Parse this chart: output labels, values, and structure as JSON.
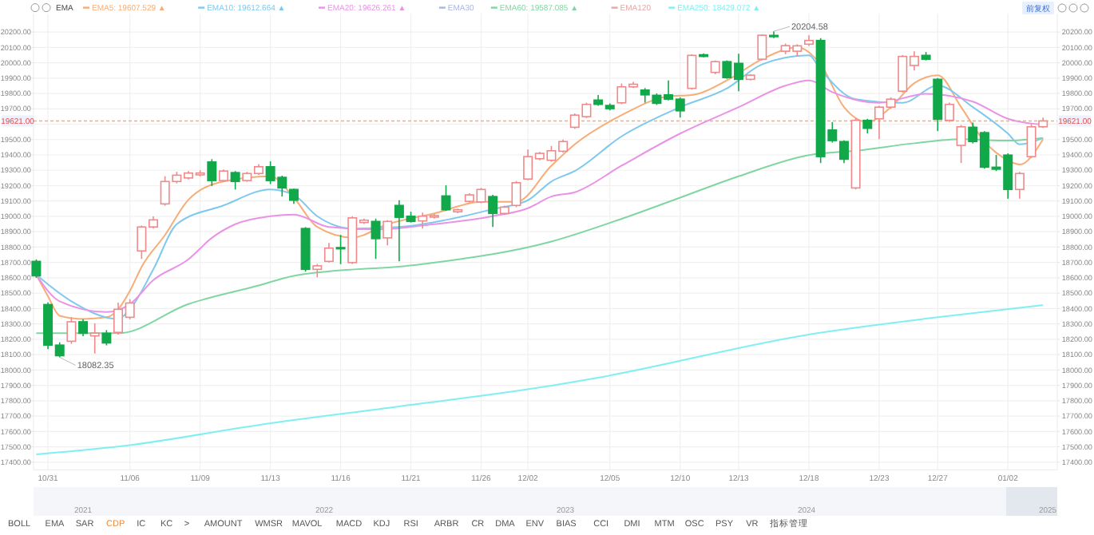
{
  "chart_data": {
    "type": "candlestick",
    "categories": [
      null,
      "10/31",
      null,
      null,
      null,
      null,
      null,
      null,
      "11/06",
      null,
      null,
      null,
      null,
      null,
      "11/09",
      null,
      null,
      null,
      null,
      null,
      "11/13",
      null,
      null,
      null,
      null,
      null,
      "11/16",
      null,
      null,
      null,
      null,
      null,
      "11/21",
      null,
      null,
      null,
      null,
      null,
      "11/26",
      null,
      null,
      null,
      "12/02",
      null,
      null,
      null,
      null,
      null,
      null,
      "12/05",
      null,
      null,
      null,
      null,
      null,
      "12/10",
      null,
      null,
      null,
      null,
      "12/13",
      null,
      null,
      null,
      null,
      null,
      "12/18",
      null,
      null,
      null,
      null,
      null,
      "12/23",
      null,
      null,
      null,
      null,
      "12/27",
      null,
      null,
      null,
      null,
      null,
      "01/02",
      null,
      null,
      null
    ],
    "ohlc": [
      [
        18707,
        18720,
        18600,
        18613
      ],
      [
        18426,
        18440,
        18135,
        18162
      ],
      [
        18162,
        18180,
        18082.35,
        18093
      ],
      [
        18187,
        18343,
        18170,
        18314
      ],
      [
        18314,
        18330,
        18220,
        18239
      ],
      [
        18222,
        18304,
        18107,
        18240
      ],
      [
        18239,
        18260,
        18160,
        18176
      ],
      [
        18245,
        18439,
        18230,
        18395
      ],
      [
        18343,
        18460,
        18330,
        18436
      ],
      [
        18775,
        18940,
        18723,
        18931
      ],
      [
        18931,
        19000,
        18920,
        18977
      ],
      [
        19081,
        19261,
        19070,
        19227
      ],
      [
        19227,
        19290,
        19215,
        19268
      ],
      [
        19250,
        19295,
        19240,
        19282
      ],
      [
        19270,
        19300,
        19260,
        19282
      ],
      [
        19354,
        19372,
        19198,
        19233
      ],
      [
        19233,
        19305,
        19225,
        19295
      ],
      [
        19285,
        19295,
        19175,
        19227
      ],
      [
        19233,
        19290,
        19225,
        19279
      ],
      [
        19279,
        19340,
        19270,
        19323
      ],
      [
        19323,
        19358,
        19210,
        19233
      ],
      [
        19254,
        19265,
        19129,
        19185
      ],
      [
        19175,
        19180,
        19081,
        19105
      ],
      [
        18921,
        18930,
        18640,
        18655
      ],
      [
        18655,
        18690,
        18603,
        18678
      ],
      [
        18707,
        18827,
        18700,
        18793
      ],
      [
        18797,
        18879,
        18689,
        18790
      ],
      [
        18699,
        19000,
        18690,
        18990
      ],
      [
        18960,
        18985,
        18950,
        18975
      ],
      [
        18967,
        18985,
        18723,
        18855
      ],
      [
        18860,
        18975,
        18811,
        18967
      ],
      [
        19071,
        19105,
        18707,
        18994
      ],
      [
        19001,
        19030,
        18960,
        18967
      ],
      [
        18970,
        19025,
        18920,
        19001
      ],
      [
        18995,
        19015,
        18985,
        19005
      ],
      [
        19133,
        19202,
        19035,
        19043
      ],
      [
        19030,
        19050,
        19020,
        19043
      ],
      [
        19098,
        19150,
        19090,
        19140
      ],
      [
        19094,
        19185,
        19085,
        19175
      ],
      [
        19129,
        19140,
        18931,
        19019
      ],
      [
        19019,
        19070,
        19010,
        19060
      ],
      [
        19071,
        19230,
        19060,
        19219
      ],
      [
        19243,
        19435,
        19235,
        19389
      ],
      [
        19375,
        19420,
        19365,
        19410
      ],
      [
        19365,
        19458,
        19355,
        19427
      ],
      [
        19424,
        19500,
        19415,
        19487
      ],
      [
        19580,
        19670,
        19570,
        19659
      ],
      [
        19649,
        19740,
        19640,
        19729
      ],
      [
        19757,
        19790,
        19720,
        19729
      ],
      [
        19722,
        19735,
        19690,
        19701
      ],
      [
        19739,
        19865,
        19730,
        19843
      ],
      [
        19843,
        19875,
        19835,
        19860
      ],
      [
        19822,
        19835,
        19740,
        19791
      ],
      [
        19788,
        19800,
        19725,
        19736
      ],
      [
        19791,
        19885,
        19755,
        19763
      ],
      [
        19763,
        19775,
        19643,
        19687
      ],
      [
        19833,
        20055,
        19825,
        20048
      ],
      [
        20052,
        20060,
        20035,
        20041
      ],
      [
        19937,
        20015,
        19925,
        20007
      ],
      [
        20007,
        20015,
        19895,
        19903
      ],
      [
        19996,
        20059,
        19815,
        19892
      ],
      [
        19892,
        19925,
        19885,
        19919
      ],
      [
        20023,
        20185,
        20015,
        20179
      ],
      [
        20178,
        20204.58,
        20160,
        20170
      ],
      [
        20075,
        20125,
        20055,
        20111
      ],
      [
        20075,
        20120,
        20041,
        20110
      ],
      [
        20121,
        20179,
        20110,
        20145
      ],
      [
        20145,
        20160,
        19347,
        19389
      ],
      [
        19562,
        19614,
        19480,
        19493
      ],
      [
        19487,
        19495,
        19347,
        19372
      ],
      [
        19185,
        19640,
        19175,
        19625
      ],
      [
        19625,
        19635,
        19540,
        19573
      ],
      [
        19635,
        19720,
        19503,
        19711
      ],
      [
        19711,
        19775,
        19700,
        19763
      ],
      [
        19815,
        20050,
        19805,
        20041
      ],
      [
        19982,
        20075,
        19950,
        20041
      ],
      [
        20048,
        20070,
        20015,
        20023
      ],
      [
        19892,
        19900,
        19555,
        19632
      ],
      [
        19625,
        19740,
        19615,
        19729
      ],
      [
        19462,
        19595,
        19347,
        19583
      ],
      [
        19580,
        19610,
        19475,
        19487
      ],
      [
        19545,
        19555,
        19310,
        19320
      ],
      [
        19320,
        19400,
        19295,
        19307
      ],
      [
        19399,
        19410,
        19115,
        19175
      ],
      [
        19175,
        19290,
        19115,
        19279
      ],
      [
        19389,
        19601,
        19380,
        19583
      ],
      [
        19583,
        19643,
        19575,
        19621
      ]
    ],
    "series": [
      {
        "type": "line",
        "name": "EMA5: 19607.529 ▲",
        "color": "#f7ad78",
        "values": [
          18620,
          18480,
          18353,
          null,
          18332,
          null,
          18343,
          18395,
          18515,
          18671,
          null,
          18879,
          null,
          19108,
          null,
          null,
          19227,
          null,
          null,
          null,
          19261,
          null,
          19122,
          null,
          18931,
          null,
          null,
          18862,
          null,
          null,
          18949,
          null,
          null,
          null,
          19019,
          null,
          null,
          null,
          19094,
          null,
          null,
          19094,
          null,
          null,
          19330,
          null,
          19469,
          null,
          null,
          null,
          19659,
          null,
          null,
          null,
          19781,
          null,
          19790,
          null,
          null,
          19885,
          null,
          null,
          20023,
          null,
          null,
          20100,
          null,
          19989,
          null,
          19711,
          null,
          19614,
          null,
          19711,
          null,
          19867,
          null,
          19919,
          null,
          19711,
          null,
          19487,
          null,
          19365,
          19337,
          null,
          19503
        ]
      },
      {
        "type": "line",
        "name": "EMA10: 19612.664 ▲",
        "color": "#7fc8ee",
        "values": [
          18620,
          null,
          null,
          18447,
          null,
          null,
          null,
          18332,
          18395,
          null,
          18655,
          null,
          18949,
          null,
          null,
          null,
          19071,
          null,
          null,
          null,
          19175,
          null,
          19139,
          null,
          19001,
          null,
          null,
          18921,
          null,
          null,
          null,
          18931,
          null,
          null,
          null,
          18977,
          null,
          null,
          null,
          19047,
          null,
          null,
          19105,
          null,
          19227,
          null,
          19295,
          null,
          null,
          null,
          19521,
          null,
          null,
          null,
          null,
          19711,
          null,
          null,
          null,
          19833,
          null,
          null,
          19989,
          null,
          null,
          null,
          20048,
          19955,
          null,
          null,
          19763,
          null,
          null,
          null,
          19739,
          null,
          null,
          19851,
          null,
          null,
          19711,
          null,
          null,
          19539,
          19469,
          null,
          19510
        ]
      },
      {
        "type": "line",
        "name": "EMA20: 19626.261 ▲",
        "color": "#e993e6",
        "values": [
          18620,
          null,
          18447,
          null,
          null,
          null,
          18377,
          null,
          18429,
          null,
          18585,
          null,
          null,
          18720,
          null,
          18860,
          null,
          18949,
          null,
          null,
          19001,
          null,
          19012,
          null,
          null,
          18931,
          null,
          null,
          null,
          18915,
          null,
          null,
          null,
          null,
          18949,
          null,
          null,
          null,
          null,
          19001,
          null,
          null,
          19053,
          null,
          19129,
          null,
          19157,
          null,
          null,
          null,
          19330,
          null,
          null,
          null,
          null,
          19539,
          null,
          null,
          null,
          null,
          19711,
          null,
          null,
          null,
          19851,
          null,
          19885,
          null,
          19809,
          null,
          null,
          null,
          19739,
          null,
          null,
          null,
          19798,
          null,
          null,
          null,
          19747,
          null,
          null,
          19635,
          null,
          null,
          19597
        ]
      },
      {
        "type": "line",
        "name": "EMA30",
        "color": "#a9b6e0",
        "values": [
          null,
          null,
          null,
          null,
          null,
          null,
          null,
          null,
          null,
          null,
          null,
          null,
          null,
          null,
          null,
          null,
          null,
          null,
          null,
          null,
          null,
          null,
          null,
          null,
          null,
          null,
          null,
          null,
          null,
          null,
          null,
          null,
          null,
          null,
          null,
          null,
          null,
          null,
          null,
          null,
          null,
          null,
          null,
          null,
          null,
          null,
          null,
          null,
          null,
          null,
          null,
          null,
          null,
          null,
          null,
          null,
          null,
          null,
          null,
          null,
          null,
          null,
          null,
          null,
          null,
          null,
          null,
          null,
          null,
          null,
          null,
          null,
          null,
          null,
          null,
          null,
          null,
          null,
          null,
          null,
          null,
          null,
          null,
          null,
          null,
          null,
          null
        ]
      },
      {
        "type": "line",
        "name": "EMA60: 19587.085 ▲",
        "color": "#80d6a2",
        "values": [
          18239,
          null,
          null,
          null,
          null,
          null,
          null,
          18239,
          null,
          null,
          null,
          null,
          null,
          18429,
          null,
          null,
          null,
          null,
          null,
          18550,
          null,
          null,
          18613,
          null,
          null,
          null,
          null,
          null,
          null,
          null,
          null,
          null,
          null,
          18689,
          null,
          null,
          null,
          null,
          null,
          null,
          null,
          null,
          null,
          null,
          18836,
          null,
          null,
          null,
          null,
          null,
          18984,
          null,
          null,
          null,
          null,
          19122,
          null,
          null,
          null,
          null,
          19261,
          null,
          null,
          null,
          null,
          null,
          19399,
          null,
          null,
          null,
          19427,
          null,
          null,
          null,
          null,
          19476,
          null,
          null,
          null,
          19503,
          null,
          null,
          null,
          19493,
          null,
          null,
          19510
        ]
      },
      {
        "type": "line",
        "name": "EMA120",
        "color": "#e0a8a8",
        "values": [
          null,
          null,
          null,
          null,
          null,
          null,
          null,
          null,
          null,
          null,
          null,
          null,
          null,
          null,
          null,
          null,
          null,
          null,
          null,
          null,
          null,
          null,
          null,
          null,
          null,
          null,
          null,
          null,
          null,
          null,
          null,
          null,
          null,
          null,
          null,
          null,
          null,
          null,
          null,
          null,
          null,
          null,
          null,
          null,
          null,
          null,
          null,
          null,
          null,
          null,
          null,
          null,
          null,
          null,
          null,
          null,
          null,
          null,
          null,
          null,
          null,
          null,
          null,
          null,
          null,
          null,
          null,
          null,
          null,
          null,
          null,
          null,
          null,
          null,
          null,
          null,
          null,
          null,
          null,
          null,
          null,
          null,
          null,
          null,
          null,
          null,
          null
        ]
      },
      {
        "type": "line",
        "name": "EMA250: 18429.072 ▲",
        "color": "#7ff0f2",
        "values": [
          17451,
          null,
          null,
          null,
          null,
          null,
          null,
          null,
          17511,
          null,
          null,
          null,
          null,
          null,
          null,
          null,
          null,
          null,
          null,
          17642,
          null,
          null,
          null,
          null,
          null,
          null,
          null,
          null,
          null,
          null,
          null,
          17763,
          null,
          null,
          null,
          null,
          null,
          null,
          null,
          null,
          null,
          null,
          null,
          null,
          17898,
          null,
          null,
          null,
          17950,
          null,
          null,
          null,
          null,
          null,
          null,
          null,
          null,
          null,
          null,
          null,
          null,
          null,
          null,
          null,
          null,
          null,
          18231,
          null,
          null,
          null,
          null,
          null,
          null,
          null,
          null,
          null,
          null,
          18343,
          null,
          null,
          null,
          null,
          null,
          null,
          null,
          null,
          18422
        ]
      }
    ],
    "ylim": [
      17350,
      20320
    ],
    "yticks": [
      {
        "value": 17400,
        "label": "17400.00"
      },
      {
        "value": 17500,
        "label": "17500.00"
      },
      {
        "value": 17600,
        "label": "17600.00"
      },
      {
        "value": 17700,
        "label": "17700.00"
      },
      {
        "value": 17800,
        "label": "17800.00"
      },
      {
        "value": 17900,
        "label": "17900.00"
      },
      {
        "value": 18000,
        "label": "18000.00"
      },
      {
        "value": 18100,
        "label": "18100.00"
      },
      {
        "value": 18200,
        "label": "18200.00"
      },
      {
        "value": 18300,
        "label": "18300.00"
      },
      {
        "value": 18400,
        "label": "18400.00"
      },
      {
        "value": 18500,
        "label": "18500.00"
      },
      {
        "value": 18600,
        "label": "18600.00"
      },
      {
        "value": 18700,
        "label": "18700.00"
      },
      {
        "value": 18800,
        "label": "18800.00"
      },
      {
        "value": 18900,
        "label": "18900.00"
      },
      {
        "value": 19000,
        "label": "19000.00"
      },
      {
        "value": 19100,
        "label": "19100.00"
      },
      {
        "value": 19200,
        "label": "19200.00"
      },
      {
        "value": 19300,
        "label": "19300.00"
      },
      {
        "value": 19400,
        "label": "19400.00"
      },
      {
        "value": 19500,
        "label": "19500.00"
      },
      {
        "value": 19600,
        "label": null
      },
      {
        "value": 19700,
        "label": "19700.00"
      },
      {
        "value": 19800,
        "label": "19800.00"
      },
      {
        "value": 19900,
        "label": "19900.00"
      },
      {
        "value": 20000,
        "label": "20000.00"
      },
      {
        "value": 20100,
        "label": "20100.00"
      },
      {
        "value": 20200,
        "label": "20200.00"
      }
    ],
    "y2lim": [
      17350,
      20320
    ],
    "y2ticks": [
      {
        "value": 17400,
        "label": "17400.00"
      },
      {
        "value": 17500,
        "label": "17500.00"
      },
      {
        "value": 17600,
        "label": "17600.00"
      },
      {
        "value": 17700,
        "label": "17700.00"
      },
      {
        "value": 17800,
        "label": "17800.00"
      },
      {
        "value": 17900,
        "label": "17900.00"
      },
      {
        "value": 18000,
        "label": "18000.00"
      },
      {
        "value": 18100,
        "label": "18100.00"
      },
      {
        "value": 18200,
        "label": "18200.00"
      },
      {
        "value": 18300,
        "label": "18300.00"
      },
      {
        "value": 18400,
        "label": "18400.00"
      },
      {
        "value": 18500,
        "label": "18500.00"
      },
      {
        "value": 18600,
        "label": "18600.00"
      },
      {
        "value": 18700,
        "label": "18700.00"
      },
      {
        "value": 18800,
        "label": "18800.00"
      },
      {
        "value": 18900,
        "label": "18900.00"
      },
      {
        "value": 19000,
        "label": "19000.00"
      },
      {
        "value": 19100,
        "label": "19100.00"
      },
      {
        "value": 19200,
        "label": "19200.00"
      },
      {
        "value": 19300,
        "label": "19300.00"
      },
      {
        "value": 19400,
        "label": "19400.00"
      },
      {
        "value": 19500,
        "label": "19500.00"
      },
      {
        "value": 19600,
        "label": null
      },
      {
        "value": 19700,
        "label": "19700.00"
      },
      {
        "value": 19800,
        "label": "19800.00"
      },
      {
        "value": 19900,
        "label": "19900.00"
      },
      {
        "value": 20000,
        "label": "20000.00"
      },
      {
        "value": 20100,
        "label": "20100.00"
      },
      {
        "value": 20200,
        "label": "20200.00"
      }
    ],
    "ref_lines": [
      {
        "axis": "y",
        "value": 19621,
        "label": "19621.00",
        "color": "#f7ad78",
        "line_style": "dashed"
      }
    ],
    "annotations": [
      {
        "text": "20204.58",
        "y": 20204.58
      },
      {
        "text": "18082.35",
        "y": 18082.35
      },
      "EMA",
      "前复权",
      "2021",
      "2022",
      "2023",
      "2024",
      "2025",
      "BOLL",
      "EMA",
      "SAR",
      "CDP",
      "IC",
      "KC",
      ">",
      "AMOUNT",
      "WMSR",
      "MAVOL",
      "MACD",
      "KDJ",
      "RSI",
      "ARBR",
      "CR",
      "DMA",
      "ENV",
      "BIAS",
      "CCI",
      "DMI",
      "MTM",
      "OSC",
      "PSY",
      "VR",
      "指标管理"
    ],
    "grid": true,
    "legend": "top left"
  }
}
